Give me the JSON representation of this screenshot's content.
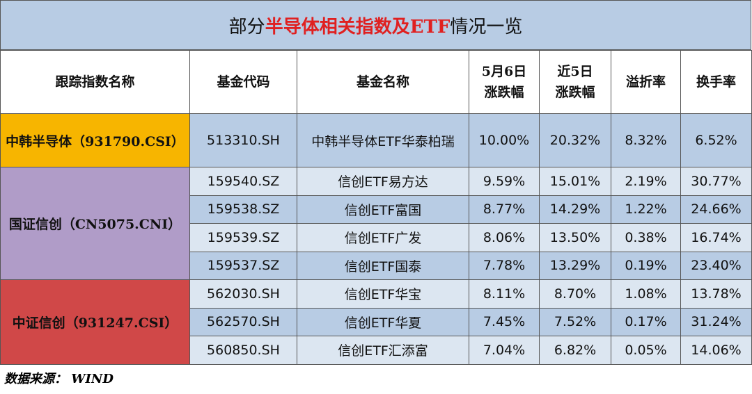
{
  "title": {
    "before": "部分",
    "highlight": "半导体相关指数及ETF",
    "after": "情况一览"
  },
  "table": {
    "headers": [
      "跟踪指数名称",
      "基金代码",
      "基金名称",
      "5月6日\n涨跌幅",
      "近5日\n涨跌幅",
      "溢折率",
      "换手率"
    ],
    "groups": [
      {
        "index": "中韩半导体（931790.CSI）",
        "rows": [
          [
            "513310.SH",
            "中韩半导体ETF华泰柏瑞",
            "10.00%",
            "20.32%",
            "8.32%",
            "6.52%"
          ]
        ]
      },
      {
        "index": "国证信创（CN5075.CNI）",
        "rows": [
          [
            "159540.SZ",
            "信创ETF易方达",
            "9.59%",
            "15.01%",
            "2.19%",
            "30.77%"
          ],
          [
            "159538.SZ",
            "信创ETF富国",
            "8.77%",
            "14.29%",
            "1.22%",
            "24.66%"
          ],
          [
            "159539.SZ",
            "信创ETF广发",
            "8.06%",
            "13.50%",
            "0.38%",
            "16.74%"
          ],
          [
            "159537.SZ",
            "信创ETF国泰",
            "7.78%",
            "13.29%",
            "0.19%",
            "23.40%"
          ]
        ]
      },
      {
        "index": "中证信创（931247.CSI）",
        "rows": [
          [
            "562030.SH",
            "信创ETF华宝",
            "8.11%",
            "8.70%",
            "1.08%",
            "13.78%"
          ],
          [
            "562570.SH",
            "信创ETF华夏",
            "7.45%",
            "7.52%",
            "0.17%",
            "31.24%"
          ],
          [
            "560850.SH",
            "信创ETF汇添富",
            "7.04%",
            "6.82%",
            "0.05%",
            "14.06%"
          ]
        ]
      }
    ]
  },
  "source": "数据来源： WIND"
}
